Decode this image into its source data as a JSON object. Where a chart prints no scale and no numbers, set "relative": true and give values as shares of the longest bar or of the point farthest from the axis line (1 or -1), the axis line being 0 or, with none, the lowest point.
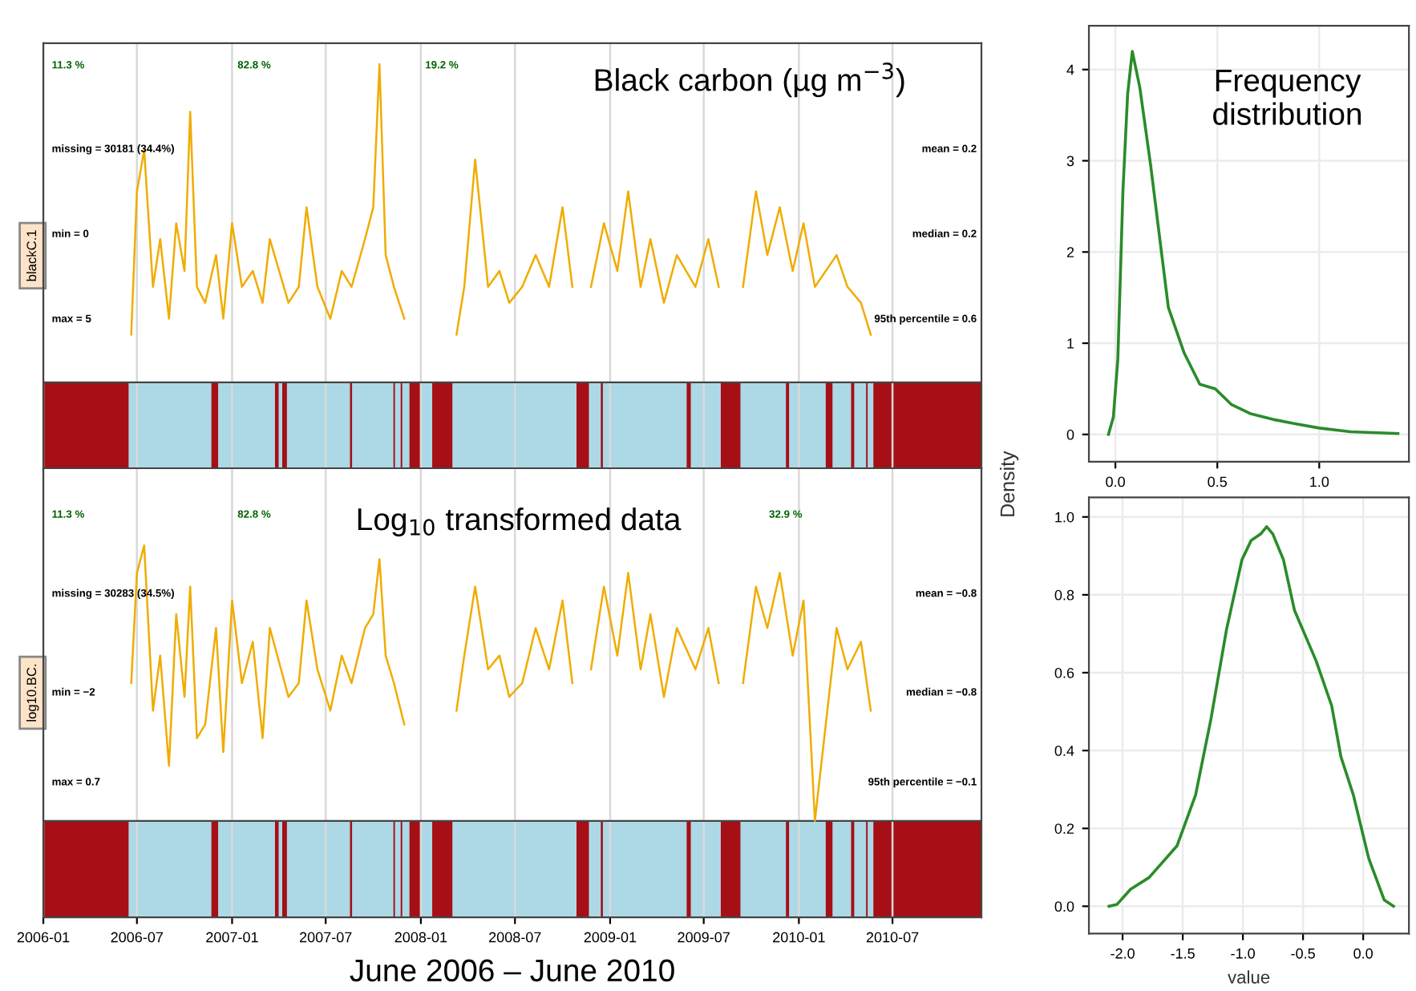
{
  "chart_data": [
    {
      "type": "line",
      "relative": true,
      "title": "Black carbon (µg m$^{−3}$)",
      "ylabel": "blackC.1",
      "x": [
        "2006-06-20",
        "2006-07-01",
        "2006-07-15",
        "2006-08-01",
        "2006-08-15",
        "2006-09-01",
        "2006-09-15",
        "2006-10-01",
        "2006-10-12",
        "2006-10-25",
        "2006-11-10",
        "2006-12-01",
        "2006-12-15",
        "2007-01-01",
        "2007-01-20",
        "2007-02-10",
        "2007-03-01",
        "2007-03-15",
        "2007-04-20",
        "2007-05-10",
        "2007-05-25",
        "2007-06-15",
        "2007-07-10",
        "2007-08-01",
        "2007-08-20",
        "2007-09-15",
        "2007-10-01",
        "2007-10-13",
        "2007-10-25",
        "2007-11-10",
        "2007-11-30",
        "2007-12-15",
        "2008-03-10",
        "2008-03-25",
        "2008-04-15",
        "2008-05-10",
        "2008-06-01",
        "2008-06-20",
        "2008-07-15",
        "2008-08-10",
        "2008-09-05",
        "2008-10-01",
        "2008-10-20",
        "2008-11-10",
        "2008-11-25",
        "2008-12-20",
        "2009-01-15",
        "2009-02-05",
        "2009-03-01",
        "2009-03-20",
        "2009-04-15",
        "2009-05-10",
        "2009-06-15",
        "2009-07-10",
        "2009-07-30",
        "2009-08-20",
        "2009-09-15",
        "2009-10-10",
        "2009-11-01",
        "2009-11-25",
        "2009-12-20",
        "2010-01-10",
        "2010-02-01",
        "2010-03-15",
        "2010-04-05",
        "2010-05-01",
        "2010-05-20"
      ],
      "series": [
        {
          "color": "#f0ac00",
          "values": [
            0.15,
            0.6,
            0.73,
            0.3,
            0.45,
            0.2,
            0.5,
            0.35,
            0.85,
            0.3,
            0.25,
            0.4,
            0.2,
            0.5,
            0.3,
            0.35,
            0.25,
            0.45,
            0.25,
            0.3,
            0.55,
            0.3,
            0.2,
            0.35,
            0.3,
            0.45,
            0.55,
            1,
            0.4,
            0.3,
            0.2,
            null,
            0.15,
            0.3,
            0.7,
            0.3,
            0.35,
            0.25,
            0.3,
            0.4,
            0.3,
            0.55,
            0.3,
            null,
            0.3,
            0.5,
            0.35,
            0.6,
            0.3,
            0.45,
            0.25,
            0.4,
            0.3,
            0.45,
            0.3,
            null,
            0.3,
            0.6,
            0.4,
            0.55,
            0.35,
            0.5,
            0.3,
            0.4,
            0.3,
            0.25,
            0.15
          ]
        }
      ],
      "xlim": [
        "2006-01-01",
        "2010-12-20"
      ],
      "xticks": [
        "2006-01",
        "2006-07",
        "2007-01",
        "2007-07",
        "2008-01",
        "2008-07",
        "2009-01",
        "2009-07",
        "2010-01",
        "2010-07"
      ],
      "grid": "x",
      "tick_labels": false,
      "bands": [
        {
          "axis": "x",
          "from": "2006-06-15",
          "to": "2010-05-25",
          "color": "#add8e6"
        },
        {
          "axis": "x",
          "from": "2006-01-01",
          "to": "2006-06-15",
          "color": "#a50f15"
        },
        {
          "axis": "x",
          "from": "2006-11-22",
          "to": "2006-12-05",
          "color": "#a50f15"
        },
        {
          "axis": "x",
          "from": "2007-03-25",
          "to": "2007-04-01",
          "color": "#a50f15"
        },
        {
          "axis": "x",
          "from": "2007-04-08",
          "to": "2007-04-17",
          "color": "#a50f15"
        },
        {
          "axis": "x",
          "from": "2007-08-17",
          "to": "2007-08-21",
          "color": "#a50f15"
        },
        {
          "axis": "x",
          "from": "2007-11-09",
          "to": "2007-11-12",
          "color": "#a50f15"
        },
        {
          "axis": "x",
          "from": "2007-11-23",
          "to": "2007-11-26",
          "color": "#a50f15"
        },
        {
          "axis": "x",
          "from": "2007-12-10",
          "to": "2008-01-01",
          "color": "#a50f15"
        },
        {
          "axis": "x",
          "from": "2008-01-23",
          "to": "2008-03-02",
          "color": "#a50f15"
        },
        {
          "axis": "x",
          "from": "2008-10-28",
          "to": "2008-11-21",
          "color": "#a50f15"
        },
        {
          "axis": "x",
          "from": "2008-12-14",
          "to": "2008-12-18",
          "color": "#a50f15"
        },
        {
          "axis": "x",
          "from": "2009-05-29",
          "to": "2009-06-06",
          "color": "#a50f15"
        },
        {
          "axis": "x",
          "from": "2009-08-03",
          "to": "2009-09-10",
          "color": "#a50f15"
        },
        {
          "axis": "x",
          "from": "2009-12-07",
          "to": "2009-12-13",
          "color": "#a50f15"
        },
        {
          "axis": "x",
          "from": "2010-02-22",
          "to": "2010-03-07",
          "color": "#a50f15"
        },
        {
          "axis": "x",
          "from": "2010-04-12",
          "to": "2010-04-18",
          "color": "#a50f15"
        },
        {
          "axis": "x",
          "from": "2010-05-11",
          "to": "2010-05-14",
          "color": "#a50f15"
        },
        {
          "axis": "x",
          "from": "2010-05-25",
          "to": "2010-12-20",
          "color": "#a50f15"
        }
      ],
      "annotations": [
        "11.3 %",
        "82.8 %",
        "19.2 %",
        "missing = 30181 (34.4%)",
        "min = 0",
        "max = 5",
        "mean = 0.2",
        "median = 0.2",
        "95th percentile = 0.6"
      ]
    },
    {
      "type": "line",
      "relative": true,
      "title": "Log$_{10}$ transformed data",
      "ylabel": "log10.BC.",
      "xlabel": "June 2006 – June 2010",
      "x": [
        "2006-06-20",
        "2006-07-01",
        "2006-07-15",
        "2006-08-01",
        "2006-08-15",
        "2006-09-01",
        "2006-09-15",
        "2006-10-01",
        "2006-10-12",
        "2006-10-25",
        "2006-11-10",
        "2006-12-01",
        "2006-12-15",
        "2007-01-01",
        "2007-01-20",
        "2007-02-10",
        "2007-03-01",
        "2007-03-15",
        "2007-04-20",
        "2007-05-10",
        "2007-05-25",
        "2007-06-15",
        "2007-07-10",
        "2007-08-01",
        "2007-08-20",
        "2007-09-15",
        "2007-10-01",
        "2007-10-13",
        "2007-10-25",
        "2007-11-10",
        "2007-11-30",
        "2007-12-15",
        "2008-03-10",
        "2008-03-25",
        "2008-04-15",
        "2008-05-10",
        "2008-06-01",
        "2008-06-20",
        "2008-07-15",
        "2008-08-10",
        "2008-09-05",
        "2008-10-01",
        "2008-10-20",
        "2008-11-10",
        "2008-11-25",
        "2008-12-20",
        "2009-01-15",
        "2009-02-05",
        "2009-03-01",
        "2009-03-20",
        "2009-04-15",
        "2009-05-10",
        "2009-06-15",
        "2009-07-10",
        "2009-07-30",
        "2009-08-20",
        "2009-09-15",
        "2009-10-10",
        "2009-11-01",
        "2009-11-25",
        "2009-12-20",
        "2010-01-10",
        "2010-02-01",
        "2010-03-15",
        "2010-04-05",
        "2010-05-01",
        "2010-05-20"
      ],
      "series": [
        {
          "color": "#f0ac00",
          "values": [
            0.5,
            0.9,
            1,
            0.4,
            0.6,
            0.2,
            0.75,
            0.45,
            0.85,
            0.3,
            0.35,
            0.7,
            0.25,
            0.8,
            0.5,
            0.65,
            0.3,
            0.7,
            0.45,
            0.5,
            0.8,
            0.55,
            0.4,
            0.6,
            0.5,
            0.7,
            0.75,
            0.95,
            0.6,
            0.5,
            0.35,
            null,
            0.4,
            0.6,
            0.85,
            0.55,
            0.6,
            0.45,
            0.5,
            0.7,
            0.55,
            0.8,
            0.5,
            null,
            0.55,
            0.85,
            0.6,
            0.9,
            0.55,
            0.75,
            0.45,
            0.7,
            0.55,
            0.7,
            0.5,
            null,
            0.5,
            0.85,
            0.7,
            0.9,
            0.6,
            0.8,
            0,
            0.7,
            0.55,
            0.65,
            0.4
          ]
        }
      ],
      "xlim": [
        "2006-01-01",
        "2010-12-20"
      ],
      "xticks": [
        "2006-01",
        "2006-07",
        "2007-01",
        "2007-07",
        "2008-01",
        "2008-07",
        "2009-01",
        "2009-07",
        "2010-01",
        "2010-07"
      ],
      "grid": "x",
      "tick_labels": "x",
      "bands": [
        {
          "axis": "x",
          "from": "2006-06-15",
          "to": "2010-05-25",
          "color": "#add8e6"
        },
        {
          "axis": "x",
          "from": "2006-01-01",
          "to": "2006-06-15",
          "color": "#a50f15"
        },
        {
          "axis": "x",
          "from": "2006-11-22",
          "to": "2006-12-05",
          "color": "#a50f15"
        },
        {
          "axis": "x",
          "from": "2007-03-25",
          "to": "2007-04-01",
          "color": "#a50f15"
        },
        {
          "axis": "x",
          "from": "2007-04-08",
          "to": "2007-04-17",
          "color": "#a50f15"
        },
        {
          "axis": "x",
          "from": "2007-08-17",
          "to": "2007-08-21",
          "color": "#a50f15"
        },
        {
          "axis": "x",
          "from": "2007-11-09",
          "to": "2007-11-12",
          "color": "#a50f15"
        },
        {
          "axis": "x",
          "from": "2007-11-23",
          "to": "2007-11-26",
          "color": "#a50f15"
        },
        {
          "axis": "x",
          "from": "2007-12-10",
          "to": "2008-01-01",
          "color": "#a50f15"
        },
        {
          "axis": "x",
          "from": "2008-01-23",
          "to": "2008-03-02",
          "color": "#a50f15"
        },
        {
          "axis": "x",
          "from": "2008-10-28",
          "to": "2008-11-21",
          "color": "#a50f15"
        },
        {
          "axis": "x",
          "from": "2008-12-14",
          "to": "2008-12-18",
          "color": "#a50f15"
        },
        {
          "axis": "x",
          "from": "2009-05-29",
          "to": "2009-06-06",
          "color": "#a50f15"
        },
        {
          "axis": "x",
          "from": "2009-08-03",
          "to": "2009-09-10",
          "color": "#a50f15"
        },
        {
          "axis": "x",
          "from": "2009-12-07",
          "to": "2009-12-13",
          "color": "#a50f15"
        },
        {
          "axis": "x",
          "from": "2010-02-22",
          "to": "2010-03-07",
          "color": "#a50f15"
        },
        {
          "axis": "x",
          "from": "2010-04-12",
          "to": "2010-04-18",
          "color": "#a50f15"
        },
        {
          "axis": "x",
          "from": "2010-05-11",
          "to": "2010-05-14",
          "color": "#a50f15"
        },
        {
          "axis": "x",
          "from": "2010-05-25",
          "to": "2010-12-20",
          "color": "#a50f15"
        }
      ],
      "annotations": [
        "11.3 %",
        "82.8 %",
        "32.9 %",
        "missing = 30283 (34.5%)",
        "min = −2",
        "max = 0.7",
        "mean = −0.8",
        "median = −0.8",
        "95th percentile = −0.1"
      ]
    },
    {
      "type": "line",
      "annotations": [
        "Frequency distribution"
      ],
      "series": [
        {
          "color": "#2a8c2a",
          "x": [
            -0.034,
            -0.01,
            0.012,
            0.037,
            0.06,
            0.083,
            0.12,
            0.173,
            0.228,
            0.26,
            0.336,
            0.414,
            0.49,
            0.568,
            0.66,
            0.784,
            0.877,
            1.0,
            1.154,
            1.386
          ],
          "values": [
            0,
            0.19,
            0.83,
            2.67,
            3.73,
            4.2,
            3.8,
            2.95,
            1.96,
            1.39,
            0.9,
            0.55,
            0.5,
            0.33,
            0.23,
            0.16,
            0.12,
            0.07,
            0.03,
            0.01
          ]
        }
      ],
      "xlim": [
        -0.13,
        1.44
      ],
      "ylim": [
        -0.3,
        4.48
      ],
      "xticks": [
        {
          "value": 0,
          "label": "0.0"
        },
        {
          "value": 0.5,
          "label": "0.5"
        },
        {
          "value": 1,
          "label": "1.0"
        }
      ],
      "yticks": [
        0,
        1,
        2,
        3,
        4
      ],
      "grid": true
    },
    {
      "type": "line",
      "ylabel": "Density",
      "xlabel": "value",
      "series": [
        {
          "color": "#2a8c2a",
          "x": [
            -2.113,
            -2.046,
            -1.933,
            -1.779,
            -1.548,
            -1.393,
            -1.265,
            -1.136,
            -1.008,
            -0.931,
            -0.853,
            -0.802,
            -0.751,
            -0.663,
            -0.571,
            -0.391,
            -0.262,
            -0.185,
            -0.082,
            0.046,
            0.175,
            0.252
          ],
          "values": [
            0,
            0.005,
            0.044,
            0.074,
            0.155,
            0.286,
            0.482,
            0.711,
            0.89,
            0.94,
            0.956,
            0.975,
            0.956,
            0.89,
            0.76,
            0.63,
            0.515,
            0.384,
            0.286,
            0.123,
            0.016,
            0
          ]
        }
      ],
      "xlim": [
        -2.28,
        0.38
      ],
      "ylim": [
        -0.07,
        1.05
      ],
      "xticks": [
        {
          "value": -2,
          "label": "-2.0"
        },
        {
          "value": -1.5,
          "label": "-1.5"
        },
        {
          "value": -1,
          "label": "-1.0"
        },
        {
          "value": -0.5,
          "label": "-0.5"
        },
        {
          "value": 0,
          "label": "0.0"
        }
      ],
      "yticks": [
        {
          "value": 0,
          "label": "0.0"
        },
        {
          "value": 0.2,
          "label": "0.2"
        },
        {
          "value": 0.4,
          "label": "0.4"
        },
        {
          "value": 0.6,
          "label": "0.6"
        },
        {
          "value": 0.8,
          "label": "0.8"
        },
        {
          "value": 1,
          "label": "1.0"
        }
      ],
      "grid": true
    }
  ]
}
